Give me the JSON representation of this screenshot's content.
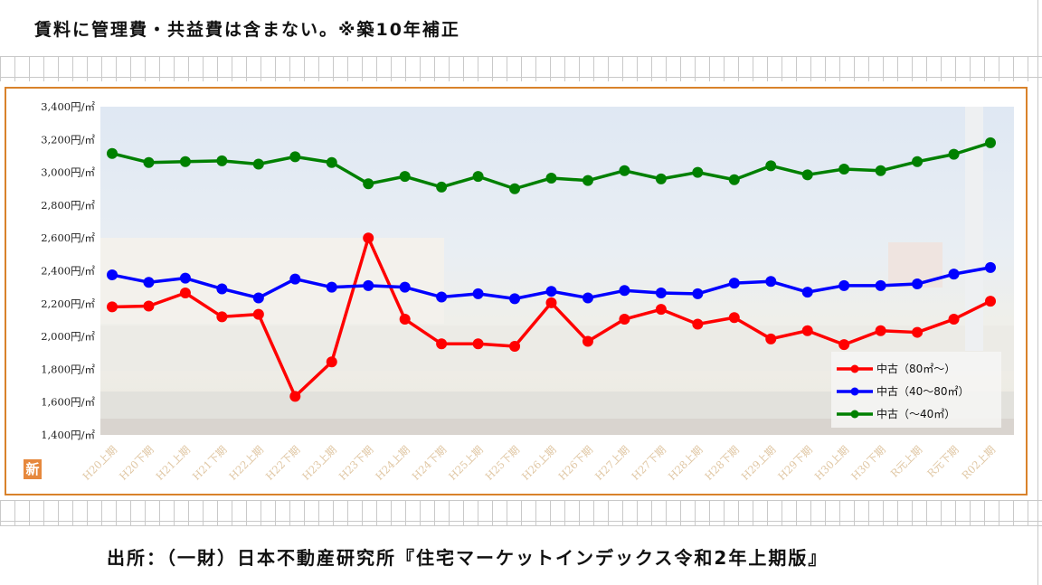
{
  "header": {
    "note": "賃料に管理費・共益費は含まない。※築10年補正"
  },
  "footer": {
    "source": "出所：（一財）日本不動産研究所『住宅マーケットインデックス令和2年上期版』"
  },
  "badge": {
    "label": "新"
  },
  "colors": {
    "frame": "#d9822b",
    "series_red": "#ff0000",
    "series_blue": "#0000ff",
    "series_green": "#008000"
  },
  "chart_data": {
    "type": "line",
    "title": "",
    "xlabel": "",
    "ylabel": "",
    "ylim": [
      1400,
      3400
    ],
    "yticks": [
      {
        "value": 3400,
        "label": "3,400円/㎡"
      },
      {
        "value": 3200,
        "label": "3,200円/㎡"
      },
      {
        "value": 3000,
        "label": "3,000円/㎡"
      },
      {
        "value": 2800,
        "label": "2,800円/㎡"
      },
      {
        "value": 2600,
        "label": "2,600円/㎡"
      },
      {
        "value": 2400,
        "label": "2,400円/㎡"
      },
      {
        "value": 2200,
        "label": "2,200円/㎡"
      },
      {
        "value": 2000,
        "label": "2,000円/㎡"
      },
      {
        "value": 1800,
        "label": "1,800円/㎡"
      },
      {
        "value": 1600,
        "label": "1,600円/㎡"
      },
      {
        "value": 1400,
        "label": "1,400円/㎡"
      }
    ],
    "categories": [
      "H20上期",
      "H20下期",
      "H21上期",
      "H21下期",
      "H22上期",
      "H22下期",
      "H23上期",
      "H23下期",
      "H24上期",
      "H24下期",
      "H25上期",
      "H25下期",
      "H26上期",
      "H26下期",
      "H27上期",
      "H27下期",
      "H28上期",
      "H28下期",
      "H29上期",
      "H29下期",
      "H30上期",
      "H30下期",
      "R元上期",
      "R元下期",
      "R02上期"
    ],
    "legend_position": "bottom-right",
    "grid": false,
    "series": [
      {
        "name": "中古（80㎡～）",
        "color": "#ff0000",
        "values": [
          2180,
          2185,
          2265,
          2120,
          2135,
          1635,
          1845,
          2600,
          2105,
          1955,
          1955,
          1940,
          2205,
          1970,
          2105,
          2165,
          2075,
          2115,
          1985,
          2035,
          1950,
          2035,
          2025,
          2105,
          2215
        ]
      },
      {
        "name": "中古（40～80㎡）",
        "color": "#0000ff",
        "values": [
          2375,
          2330,
          2355,
          2290,
          2235,
          2350,
          2300,
          2310,
          2300,
          2240,
          2260,
          2230,
          2275,
          2235,
          2280,
          2265,
          2260,
          2325,
          2335,
          2270,
          2310,
          2310,
          2320,
          2380,
          2420
        ]
      },
      {
        "name": "中古（～40㎡）",
        "color": "#008000",
        "values": [
          3115,
          3060,
          3065,
          3070,
          3050,
          3095,
          3060,
          2930,
          2975,
          2910,
          2975,
          2900,
          2965,
          2950,
          3010,
          2960,
          3000,
          2955,
          3040,
          2985,
          3020,
          3010,
          3065,
          3110,
          3180
        ]
      }
    ]
  }
}
